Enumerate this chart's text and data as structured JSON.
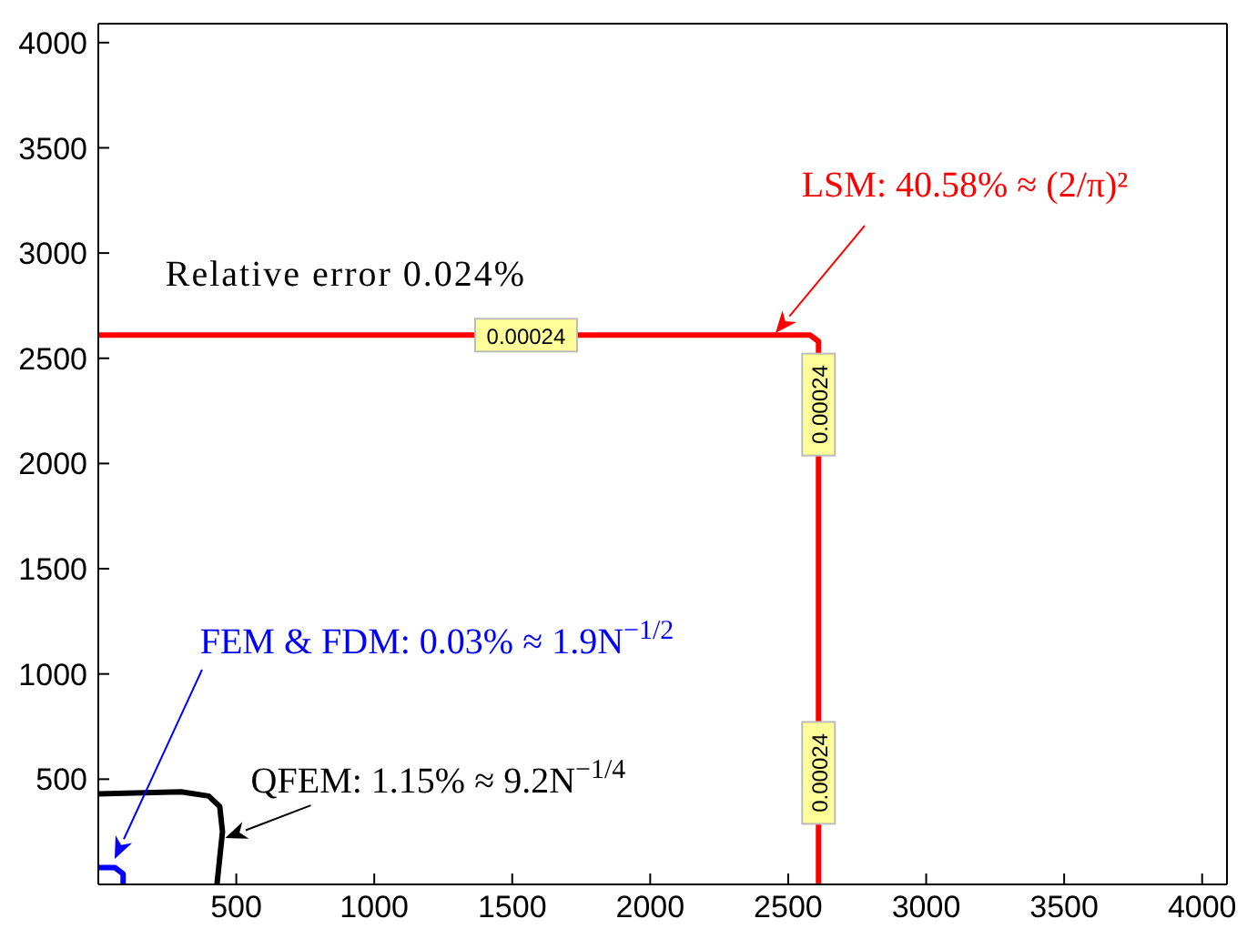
{
  "chart_data": {
    "type": "line",
    "xlim": [
      0,
      4090
    ],
    "ylim": [
      0,
      4090
    ],
    "xticks": [
      500,
      1000,
      1500,
      2000,
      2500,
      3000,
      3500,
      4000
    ],
    "yticks": [
      500,
      1000,
      1500,
      2000,
      2500,
      3000,
      3500,
      4000
    ],
    "grid": false,
    "legend": false,
    "marker": "none",
    "series": [
      {
        "color": "#ff0000",
        "x": [
          0,
          1000,
          2000,
          2580,
          2610,
          2610,
          2610
        ],
        "values": [
          2610,
          2610,
          2610,
          2610,
          2580,
          1000,
          0
        ]
      },
      {
        "color": "#0000ff",
        "x": [
          0,
          60,
          90,
          90
        ],
        "values": [
          80,
          80,
          50,
          0
        ]
      },
      {
        "color": "#000000",
        "x": [
          0,
          300,
          400,
          440,
          450,
          430
        ],
        "values": [
          430,
          440,
          420,
          370,
          250,
          0
        ]
      }
    ],
    "annotations": [
      "LSM: 40.58% ≈ (2/π)²",
      "FEM & FDM: 0.03% ≈ 1.9N$^{−1/2}$",
      {
        "text": "QFEM: 1.15% ≈ 9.2N$^{−1/4}$",
        "x": 460,
        "y": 220
      },
      {
        "text": "0.00024",
        "x": 1550,
        "y": 2610
      },
      {
        "text": "0.00024",
        "x": 2610,
        "y": 2280
      },
      {
        "text": "0.00024",
        "x": 2610,
        "y": 530
      },
      "Relative error 0.024%"
    ]
  }
}
